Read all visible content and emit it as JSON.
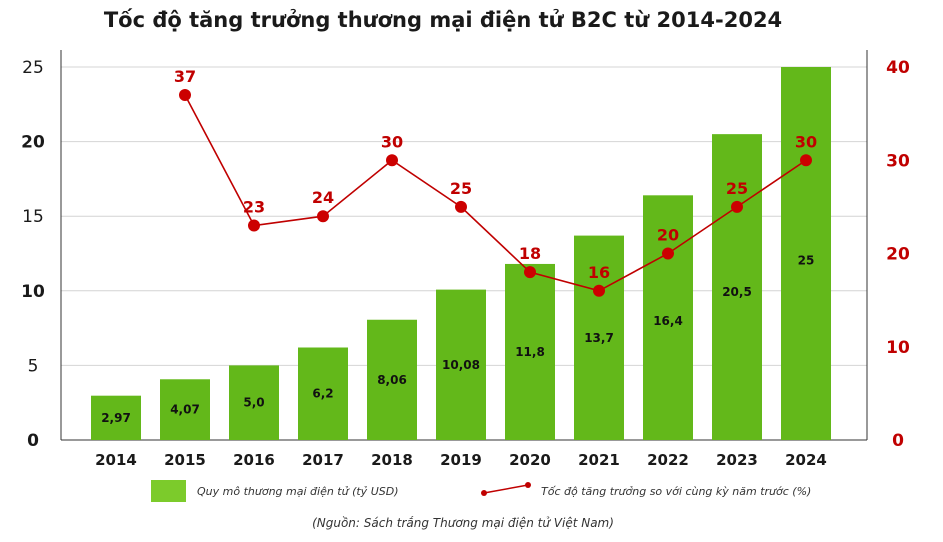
{
  "chart_data": {
    "type": "bar",
    "title": "Tốc độ tăng trưởng thương mại điện tử B2C từ 2014-2024",
    "categories": [
      "2014",
      "2015",
      "2016",
      "2017",
      "2018",
      "2019",
      "2020",
      "2021",
      "2022",
      "2023",
      "2024"
    ],
    "series": [
      {
        "name": "Quy mô thương mại điện tử (tỷ USD)",
        "type": "bar",
        "axis": "left",
        "color": "#63b81a",
        "values": [
          2.97,
          4.07,
          5.0,
          6.2,
          8.06,
          10.08,
          11.8,
          13.7,
          16.4,
          20.5,
          25
        ],
        "labels": [
          "2,97",
          "4,07",
          "5,0",
          "6,2",
          "8,06",
          "10,08",
          "11,8",
          "13,7",
          "16,4",
          "20,5",
          "25"
        ]
      },
      {
        "name": "Tốc độ tăng trưởng so với cùng kỳ năm trước (%)",
        "type": "line",
        "axis": "right",
        "color": "#c00000",
        "values": [
          null,
          37,
          23,
          24,
          30,
          25,
          18,
          16,
          20,
          25,
          30
        ],
        "labels": [
          "",
          "37",
          "23",
          "24",
          "30",
          "25",
          "18",
          "16",
          "20",
          "25",
          "30"
        ]
      }
    ],
    "y_left": {
      "range": [
        0,
        25
      ],
      "ticks": [
        "0",
        "5",
        "10",
        "15",
        "20",
        "25"
      ]
    },
    "y_right": {
      "range": [
        0,
        40
      ],
      "ticks": [
        "0",
        "10",
        "20",
        "30",
        "40"
      ]
    },
    "grid": true,
    "legend_position": "bottom",
    "source_note": "(Nguồn: Sách trắng Thương mại điện tử Việt Nam)"
  }
}
